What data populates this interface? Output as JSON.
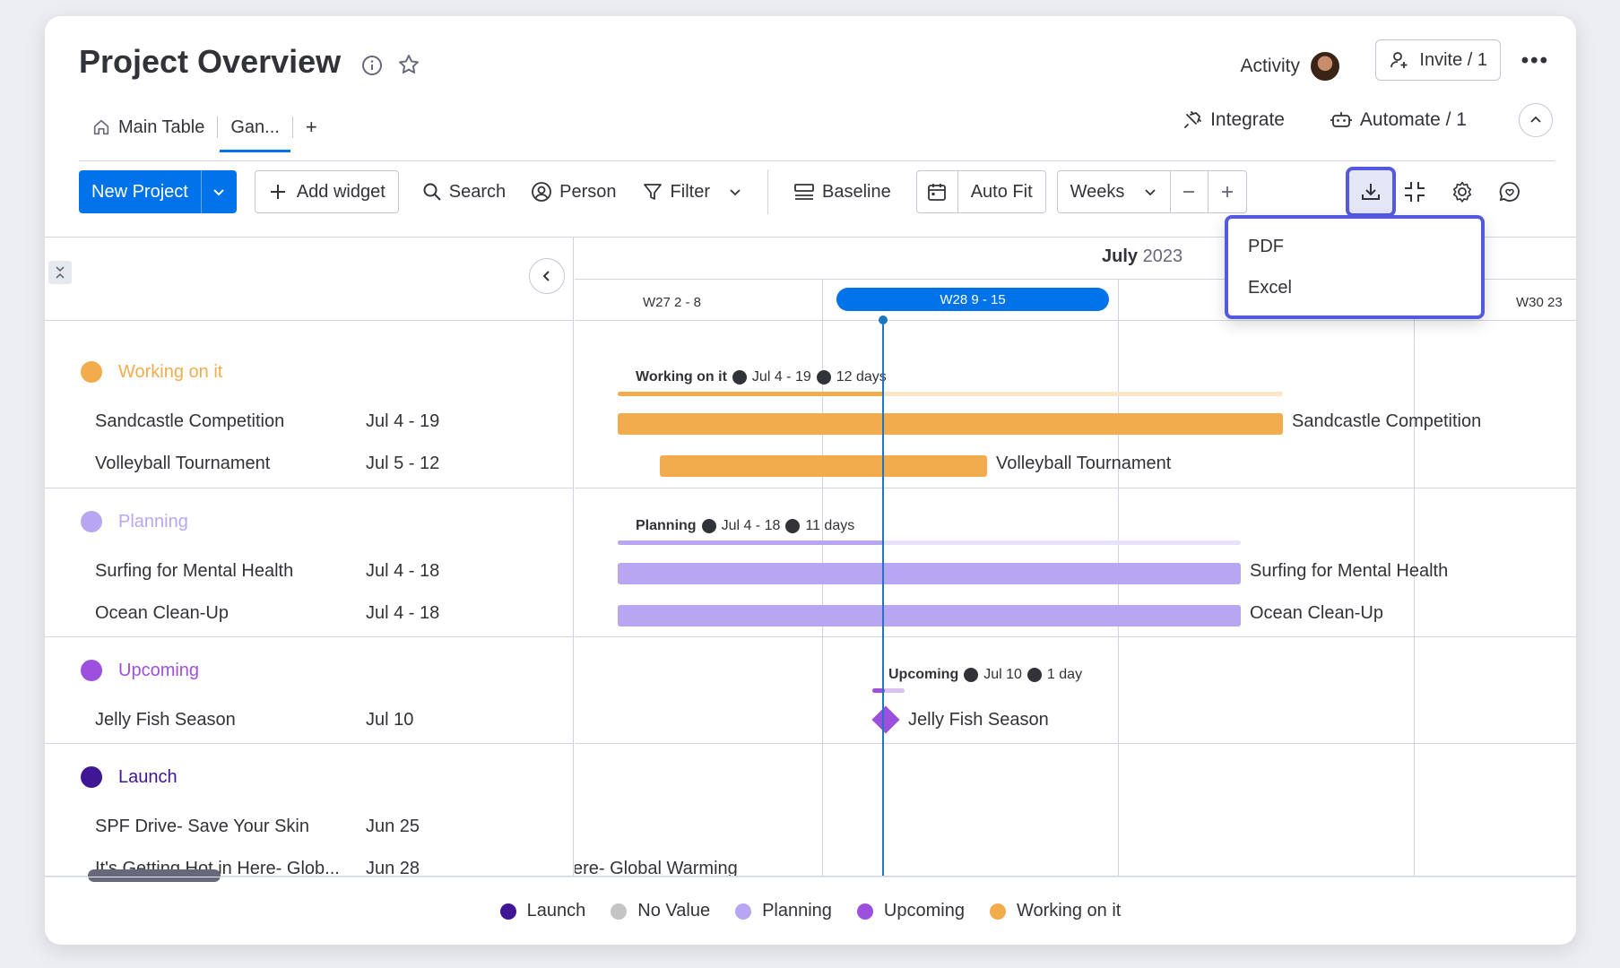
{
  "header": {
    "title": "Project Overview",
    "activity_label": "Activity",
    "invite_label": "Invite / 1"
  },
  "tabs": [
    {
      "label": "Main Table"
    },
    {
      "label": "Gan..."
    }
  ],
  "tab_add": "+",
  "top_actions": {
    "integrate": "Integrate",
    "automate": "Automate / 1"
  },
  "toolbar": {
    "new_project": "New Project",
    "add_widget": "Add widget",
    "search": "Search",
    "person": "Person",
    "filter": "Filter",
    "baseline": "Baseline",
    "auto_fit": "Auto Fit",
    "scale": "Weeks"
  },
  "export_menu": {
    "items": [
      "PDF",
      "Excel"
    ]
  },
  "timeline": {
    "month": "July",
    "year": "2023",
    "weeks": [
      "W27 2 - 8",
      "W28 9 - 15",
      "W30 23"
    ]
  },
  "groups": [
    {
      "name": "Working on it",
      "color": "#f2ac4e",
      "summary": {
        "name": "Working on it",
        "range": "Jul 4 - 19",
        "duration": "12 days"
      },
      "items": [
        {
          "name": "Sandcastle Competition",
          "date": "Jul 4 - 19"
        },
        {
          "name": "Volleyball Tournament",
          "date": "Jul 5 - 12"
        }
      ]
    },
    {
      "name": "Planning",
      "color": "#b9a6f2",
      "summary": {
        "name": "Planning",
        "range": "Jul 4 - 18",
        "duration": "11 days"
      },
      "items": [
        {
          "name": "Surfing for Mental Health",
          "date": "Jul 4 - 18"
        },
        {
          "name": "Ocean Clean-Up",
          "date": "Jul 4 - 18"
        }
      ]
    },
    {
      "name": "Upcoming",
      "color": "#9d50dd",
      "summary": {
        "name": "Upcoming",
        "range": "Jul 10",
        "duration": "1 day"
      },
      "items": [
        {
          "name": "Jelly Fish Season",
          "date": "Jul 10"
        }
      ]
    },
    {
      "name": "Launch",
      "color": "#401694",
      "items": [
        {
          "name": "SPF Drive- Save Your Skin",
          "date": "Jun 25"
        },
        {
          "name": "It's Getting Hot in Here- Glob...",
          "date": "Jun 28"
        }
      ]
    }
  ],
  "offscreen_bar_label": "ere- Global Warming",
  "legend": [
    {
      "label": "Launch",
      "color": "#401694"
    },
    {
      "label": "No Value",
      "color": "#c4c4c4"
    },
    {
      "label": "Planning",
      "color": "#b9a6f2"
    },
    {
      "label": "Upcoming",
      "color": "#9d50dd"
    },
    {
      "label": "Working on it",
      "color": "#f2ac4e"
    }
  ],
  "colors": {
    "primary": "#0073ea",
    "highlight": "#5559df",
    "today_line": "#1f76c2"
  }
}
